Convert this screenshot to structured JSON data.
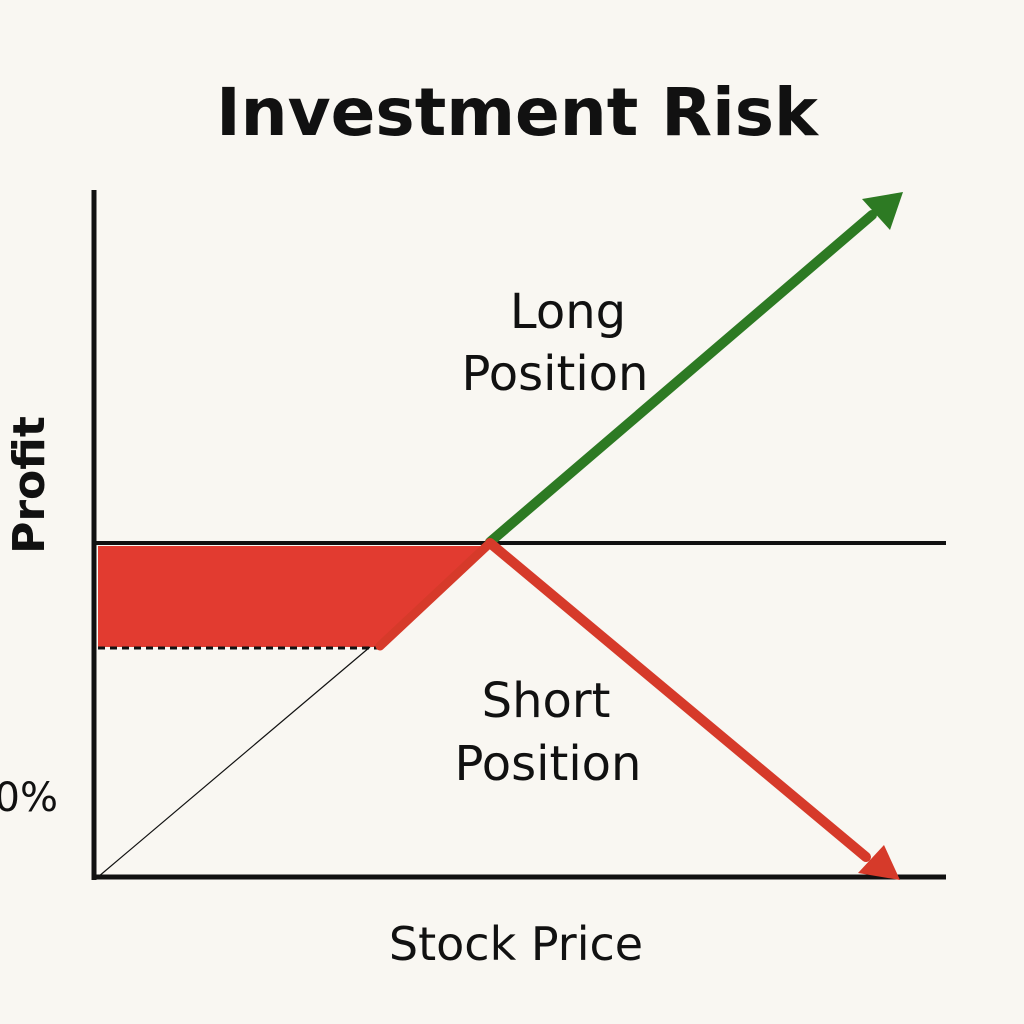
{
  "title": "Investment Risk",
  "labels": {
    "long_line1": "Long",
    "long_line2": "Position",
    "short_line1": "Short",
    "short_line2": "Position",
    "xlabel": "Stock Price",
    "ylabel": "Profit",
    "ytick": "0%"
  },
  "colors": {
    "background": "#f9f7f2",
    "axis": "#111111",
    "long": "#2d7a23",
    "short": "#d63a2a",
    "loss_fill": "#e23b30"
  }
}
